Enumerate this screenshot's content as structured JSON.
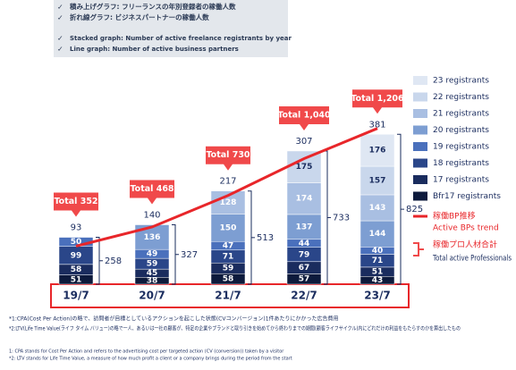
{
  "header_notes": [
    "積み上げグラフ: フリーランスの年別登録者の稼働人数",
    "折れ線グラフ: ビジネスパートナーの稼働人数",
    "Stacked graph: Number of active freelance registrants by year",
    "Line graph: Number of active business partners"
  ],
  "chart_data": {
    "type": "bar",
    "stacked": true,
    "categories": [
      "19/7",
      "20/7",
      "21/7",
      "22/7",
      "23/7"
    ],
    "series": [
      {
        "name": "23 registrants",
        "color": "#dfe7f3",
        "values": [
          null,
          null,
          null,
          null,
          176
        ]
      },
      {
        "name": "22 registrants",
        "color": "#c9d7ec",
        "values": [
          null,
          null,
          null,
          175,
          157
        ]
      },
      {
        "name": "21 registrants",
        "color": "#a9bfe2",
        "values": [
          null,
          null,
          128,
          174,
          143
        ]
      },
      {
        "name": "20 registrants",
        "color": "#7d9ed2",
        "values": [
          null,
          136,
          150,
          137,
          144
        ]
      },
      {
        "name": "19 registrants",
        "color": "#4a70bc",
        "values": [
          50,
          49,
          47,
          44,
          40
        ]
      },
      {
        "name": "18 registrants",
        "color": "#2a4689",
        "values": [
          99,
          59,
          71,
          79,
          71
        ]
      },
      {
        "name": "17 registrants",
        "color": "#1a2c5e",
        "values": [
          58,
          45,
          59,
          67,
          51
        ]
      },
      {
        "name": "Bfr17 registrants",
        "color": "#0d1a3c",
        "values": [
          51,
          38,
          58,
          57,
          43
        ]
      }
    ],
    "line": {
      "name": "稼働BP推移",
      "name_en": "Active BPs trend",
      "color": "#e8262a",
      "axis": "y2",
      "values": [
        93,
        140,
        217,
        307,
        381
      ]
    },
    "professionals_total": {
      "name": "稼働プロ人材合計",
      "name_en": "Total active Professionals",
      "values": [
        258,
        327,
        513,
        733,
        825
      ]
    },
    "total_labels": [
      "Total 352",
      "Total 468",
      "Total 730",
      "Total 1,040",
      "Total 1,206"
    ],
    "ylim": [
      0,
      900
    ],
    "y2lim": [
      0,
      400
    ]
  },
  "footnotes": [
    "*1:CPA(Cost Per Action)の略で、訪問者が目標としているアクションを起こした状態(CVコンバージョン)1件あたりにかかった広告費用",
    "*2:LTV(Life Time Value(ライフ タイム バリュー)の略で一人、あるいは一社の顧客が、特定の企業やブランドと取り引きを始めてから終わりまでの期間(顧客ライフサイクル)内にどれだけの利益をもたらすのかを算出したもの",
    "1: CPA stands for Cost Per Action and refers to the advertising cost per targeted action (CV (conversion)) taken by a visitor",
    "*2: LTV stands for Life Time Value, a measure of how much profit a client or a company brings during the period from the start"
  ]
}
